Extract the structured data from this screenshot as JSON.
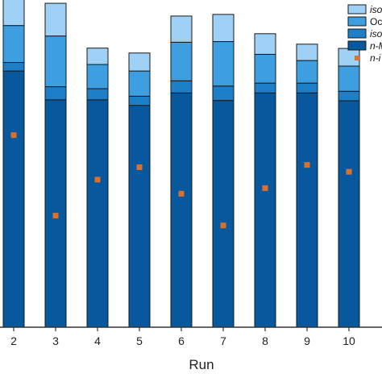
{
  "chart_data": {
    "type": "bar",
    "stacked": true,
    "xlabel": "Run",
    "categories": [
      "2",
      "3",
      "4",
      "5",
      "6",
      "7",
      "8",
      "9",
      "10"
    ],
    "ylim": [
      0,
      1
    ],
    "series": [
      {
        "name": "n-M",
        "color": "#08589e",
        "values": [
          0.783,
          0.695,
          0.695,
          0.678,
          0.716,
          0.693,
          0.716,
          0.716,
          0.692
        ]
      },
      {
        "name": "iso",
        "color": "#1d7fc8",
        "values": [
          0.026,
          0.04,
          0.034,
          0.028,
          0.037,
          0.044,
          0.03,
          0.03,
          0.029
        ]
      },
      {
        "name": "Oc",
        "color": "#3d9ee0",
        "values": [
          0.113,
          0.155,
          0.074,
          0.077,
          0.118,
          0.136,
          0.088,
          0.069,
          0.077
        ]
      },
      {
        "name": "iso",
        "color": "#9fd0f5",
        "values": [
          0.086,
          0.1,
          0.05,
          0.055,
          0.08,
          0.083,
          0.063,
          0.05,
          0.054
        ]
      }
    ],
    "markers": {
      "name": "n-i",
      "color": "#d9712a",
      "values": [
        0.587,
        0.341,
        0.451,
        0.489,
        0.408,
        0.311,
        0.425,
        0.496,
        0.475
      ]
    },
    "legend_position": "top-right",
    "grid": false
  }
}
